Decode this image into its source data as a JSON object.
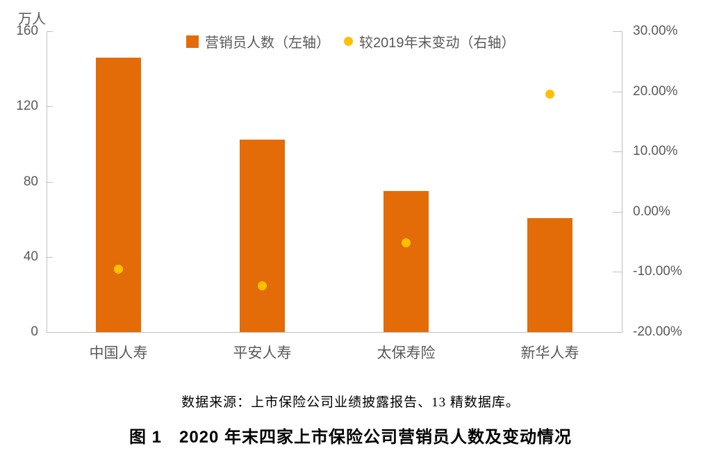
{
  "page": {
    "background": "#FFFFFF"
  },
  "colors": {
    "bar": "#E36C09",
    "dot": "#FFC000",
    "axis_line": "#BFBFBF",
    "axis_text": "#595959",
    "text": "#000000"
  },
  "chart_data": {
    "type": "combo",
    "categories": [
      "中国人寿",
      "平安人寿",
      "太保寿险",
      "新华人寿"
    ],
    "series": [
      {
        "name": "营销员人数（左轴）",
        "type": "bar",
        "axis": "left",
        "unit": "万人",
        "color": "#E36C09",
        "values": [
          145.8,
          102.4,
          74.9,
          60.6
        ]
      },
      {
        "name": "较2019年末变动（右轴）",
        "type": "scatter",
        "axis": "right",
        "unit": "%",
        "color": "#FFC000",
        "values": [
          -9.6,
          -12.3,
          -5.2,
          19.5
        ]
      }
    ],
    "left_axis": {
      "label": "万人",
      "min": 0,
      "max": 160,
      "ticks": [
        0,
        40,
        80,
        120,
        160
      ]
    },
    "right_axis": {
      "min": -20,
      "max": 30,
      "tick_values": [
        30,
        20,
        10,
        0,
        -10,
        -20
      ],
      "tick_labels": [
        "30.00%",
        "20.00%",
        "10.00%",
        "0.00%",
        "-10.00%",
        "-20.00%"
      ]
    },
    "legend_position": "top",
    "grid": false,
    "source_note": "数据来源：上市保险公司业绩披露报告、13 精数据库。",
    "caption": "图 1　2020 年末四家上市保险公司营销员人数及变动情况"
  }
}
